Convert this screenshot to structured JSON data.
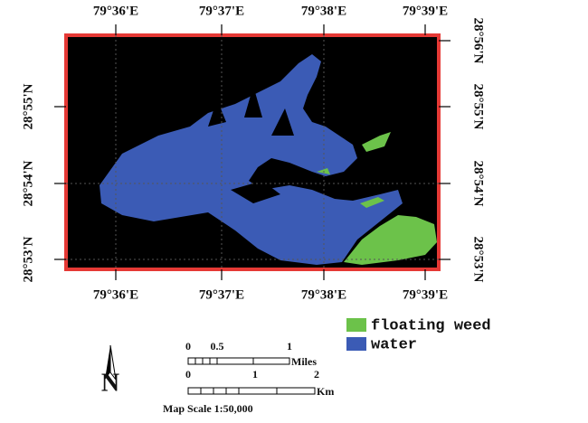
{
  "map": {
    "top_labels": [
      "79°36'E",
      "79°37'E",
      "79°38'E",
      "79°39'E"
    ],
    "bottom_labels": [
      "79°36'E",
      "79°37'E",
      "79°38'E",
      "79°39'E"
    ],
    "left_labels": [
      "28°55'N",
      "28°54'N",
      "28°53'N"
    ],
    "right_labels": [
      "28°56'N",
      "28°55'N",
      "28°54'N",
      "28°53'N"
    ],
    "legend": [
      "floating weed",
      "water"
    ],
    "scale_miles": [
      "0",
      "0.5",
      "1",
      "Miles"
    ],
    "scale_km": [
      "0",
      "1",
      "2",
      "Km"
    ],
    "scale_text": "Map Scale 1:50,000",
    "north": "N"
  }
}
